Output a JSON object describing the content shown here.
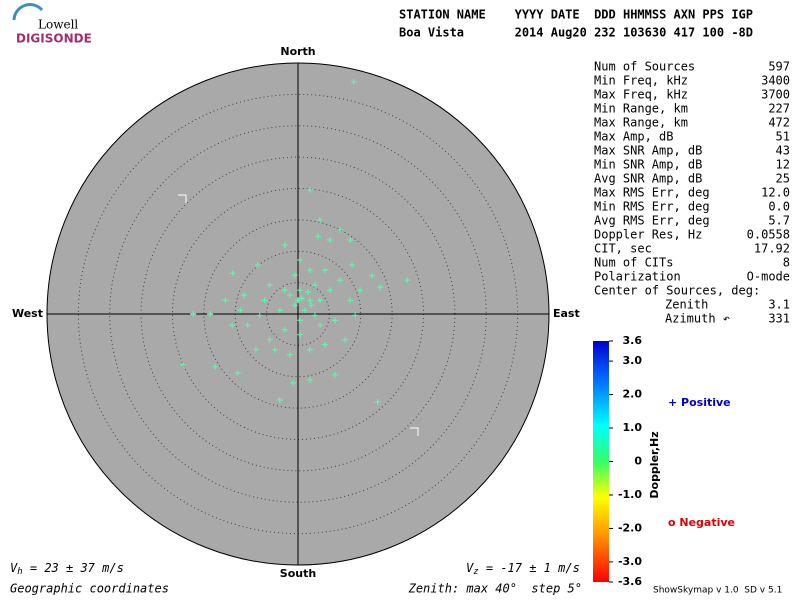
{
  "logo": {
    "top": "Lowell",
    "bottom": "DIGISONDE"
  },
  "header": {
    "line1": "STATION NAME    YYYY DATE  DDD HHMMSS AXN PPS IGP",
    "line2": "Boa Vista       2014 Aug20 232 103630 417 100 -8D"
  },
  "chart_data": {
    "type": "skymap",
    "directions": {
      "north": "North",
      "south": "South",
      "west": "West",
      "east": "East"
    },
    "xlim": [
      -40,
      40
    ],
    "ylim": [
      -40,
      40
    ],
    "rticks": [
      5,
      10,
      15,
      20,
      25,
      30,
      35
    ],
    "color": "#55ffaa",
    "x": [
      8.9,
      1.9,
      3.5,
      5.1,
      -2.1,
      -10.4,
      -16.7,
      -14.0,
      -18.3,
      -13.2,
      -9.6,
      -2.9,
      -0.8,
      1.9,
      5.9,
      12.7,
      17.4,
      13.1,
      11.8,
      8.6,
      8.3,
      6.7,
      3.2,
      0.3,
      -6.4,
      -8.6,
      -9.2,
      -8.0,
      -6.7,
      -4.5,
      -2.1,
      0.3,
      3.5,
      5.9,
      8.3,
      9.9,
      5.1,
      2.7,
      0.3,
      -1.3,
      -0.5,
      1.9,
      3.5,
      1.1,
      -2.9,
      -5.3,
      -4.5,
      4.3,
      6.7,
      1.9,
      -0.5,
      -2.1,
      0.3,
      -6.1,
      -3.7,
      1.9,
      4.3,
      7.5,
      -1.3,
      -10.5,
      -11.6,
      9.1,
      2.7,
      0.6,
      1.6,
      0.0,
      2.1
    ],
    "y": [
      37.0,
      19.8,
      15.0,
      11.8,
      11.0,
      6.5,
      0.0,
      0.0,
      -8.1,
      -8.4,
      -9.4,
      -13.7,
      -11.0,
      -10.5,
      -9.7,
      -14.0,
      5.4,
      4.3,
      6.1,
      7.8,
      11.8,
      13.4,
      12.4,
      8.6,
      7.8,
      3.0,
      0.6,
      -1.8,
      -5.7,
      -4.1,
      -2.5,
      -3.3,
      -1.8,
      -1.0,
      2.2,
      3.8,
      3.8,
      4.6,
      3.8,
      3.0,
      1.4,
      2.2,
      2.2,
      0.6,
      0.6,
      2.2,
      4.6,
      7.0,
      5.4,
      7.0,
      6.2,
      3.8,
      -1.0,
      -0.2,
      -5.7,
      -5.7,
      -4.9,
      -4.1,
      -6.5,
      -1.8,
      2.2,
      -0.2,
      -0.2,
      2.5,
      3.5,
      2.2,
      1.4
    ]
  },
  "stats": {
    "rows": [
      [
        "Num of Sources",
        "597"
      ],
      [
        "Min Freq, kHz",
        "3400"
      ],
      [
        "Max Freq, kHz",
        "3700"
      ],
      [
        "Min Range, km",
        "227"
      ],
      [
        "Max Range, km",
        "472"
      ],
      [
        "Max Amp, dB",
        "51"
      ],
      [
        "Max SNR Amp, dB",
        "43"
      ],
      [
        "Min SNR Amp, dB",
        "12"
      ],
      [
        "Avg SNR Amp, dB",
        "25"
      ],
      [
        "Max RMS Err, deg",
        "12.0"
      ],
      [
        "Min RMS Err, deg",
        "0.0"
      ],
      [
        "Avg RMS Err, deg",
        "5.7"
      ],
      [
        "Doppler Res, Hz",
        "0.0558"
      ],
      [
        "CIT, sec",
        "17.92"
      ],
      [
        "Num of CITs",
        "8"
      ],
      [
        "Polarization",
        "O-mode"
      ]
    ],
    "center_title": "Center of Sources, deg:",
    "center_rows": [
      [
        "Zenith",
        "3.1"
      ],
      [
        "Azimuth ↶",
        "331"
      ]
    ]
  },
  "colorbar": {
    "title": "Doppler,Hz",
    "lim": [
      -3.6,
      3.6
    ],
    "ticks": [
      3.6,
      {
        "value": 3.0,
        "label": "3.0"
      },
      {
        "value": 2.0,
        "label": "2.0"
      },
      {
        "value": 1.0,
        "label": "1.0"
      },
      0,
      {
        "value": -1.0,
        "label": "-1.0"
      },
      {
        "value": -2.0,
        "label": "-2.0"
      },
      {
        "value": -3.0,
        "label": "-3.0"
      },
      -3.6
    ]
  },
  "legend": {
    "positive": "+ Positive",
    "negative": "o Negative"
  },
  "footer": {
    "vh_symbol": "V",
    "vh_sub": "h",
    "vh_text": " = 23 ± 37 m/s",
    "vz_symbol": "V",
    "vz_sub": "z",
    "vz_text": " = -17 ± 1 m/s",
    "coords": "Geographic coordinates",
    "zenith": "Zenith: max 40°  step 5°",
    "version": "ShowSkymap v 1.0  SD v 5.1"
  }
}
